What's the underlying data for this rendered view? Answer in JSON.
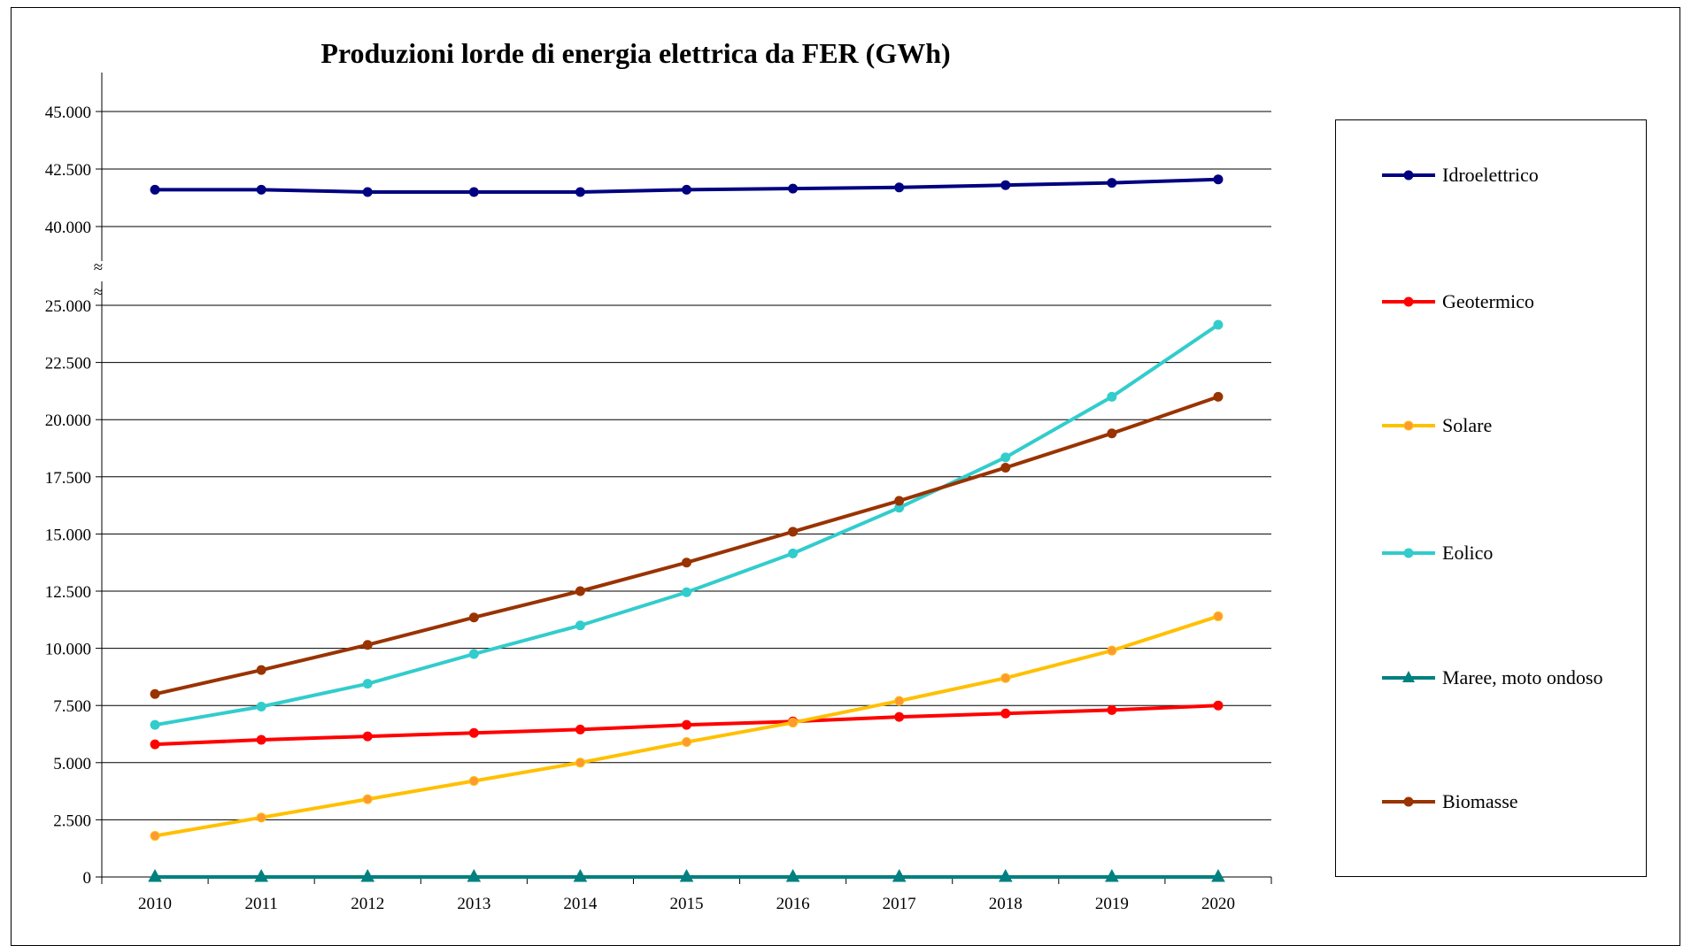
{
  "chart_data": {
    "type": "line",
    "title": "Produzioni lorde di energia elettrica da FER (GWh)",
    "xlabel": "",
    "ylabel": "",
    "categories": [
      "2010",
      "2011",
      "2012",
      "2013",
      "2014",
      "2015",
      "2016",
      "2017",
      "2018",
      "2019",
      "2020"
    ],
    "y_tick_labels_lower": [
      "0",
      "2.500",
      "5.000",
      "7.500",
      "10.000",
      "12.500",
      "15.000",
      "17.500",
      "20.000",
      "22.500",
      "25.000"
    ],
    "y_tick_labels_upper": [
      "40.000",
      "42.500",
      "45.000"
    ],
    "axis_break_symbol": "≈",
    "ylim_lower": [
      0,
      25000
    ],
    "ylim_upper": [
      40000,
      45000
    ],
    "grid": true,
    "legend_position": "right",
    "series": [
      {
        "name": "Idroelettrico",
        "color": "#000080",
        "marker": "circle",
        "values": [
          41600,
          41600,
          41500,
          41500,
          41500,
          41600,
          41650,
          41700,
          41800,
          41900,
          42050
        ]
      },
      {
        "name": "Geotermico",
        "color": "#ff0000",
        "marker": "circle",
        "values": [
          5800,
          6000,
          6150,
          6300,
          6450,
          6650,
          6800,
          7000,
          7150,
          7300,
          7500
        ]
      },
      {
        "name": "Solare",
        "color": "#ffc000",
        "marker": "circle",
        "marker_fill": "#ff9933",
        "values": [
          1800,
          2600,
          3400,
          4200,
          5000,
          5900,
          6750,
          7700,
          8700,
          9900,
          11400
        ]
      },
      {
        "name": "Eolico",
        "color": "#33cccc",
        "marker": "circle",
        "values": [
          6650,
          7450,
          8450,
          9750,
          11000,
          12450,
          14150,
          16150,
          18350,
          21000,
          24150
        ]
      },
      {
        "name": "Maree, moto ondoso",
        "color": "#008080",
        "marker": "triangle",
        "values": [
          0,
          0,
          0,
          0,
          0,
          0,
          0,
          0,
          0,
          0,
          0
        ]
      },
      {
        "name": "Biomasse",
        "color": "#993300",
        "marker": "circle",
        "values": [
          8000,
          9050,
          10150,
          11350,
          12500,
          13750,
          15100,
          16450,
          17900,
          19400,
          21000
        ]
      }
    ]
  }
}
